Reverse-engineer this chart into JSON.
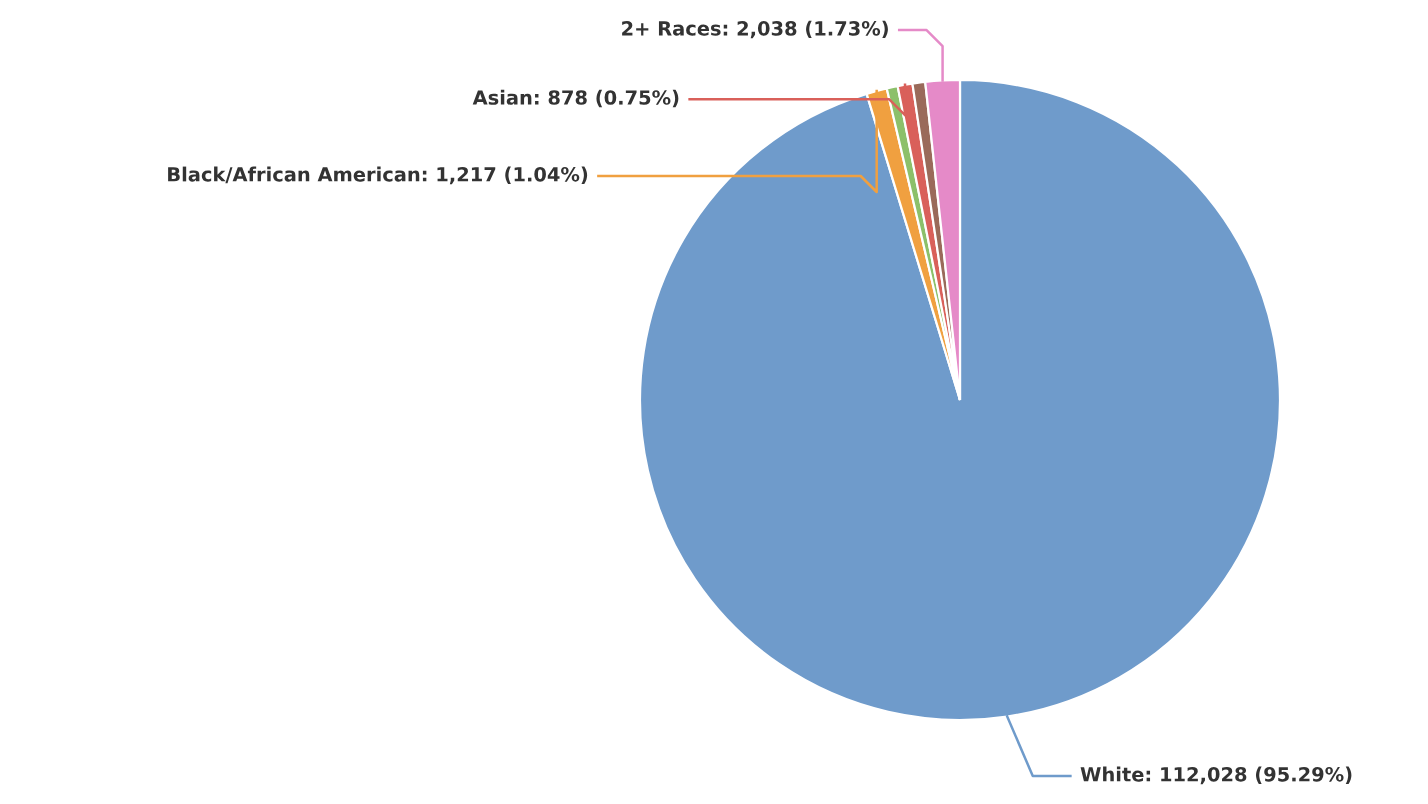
{
  "chart_data": {
    "type": "pie",
    "categories": [
      "White",
      "Black/African American",
      null,
      "Asian",
      null,
      "2+ Races"
    ],
    "values": [
      112028,
      1217,
      650,
      878,
      754,
      2038
    ],
    "value_labels": [
      "112,028 (95.29%)",
      "1,217 (1.04%)",
      null,
      "878 (0.75%)",
      null,
      "2,038 (1.73%)"
    ],
    "colors": [
      "#6f9bcb",
      "#f0a040",
      "#8cc06a",
      "#d9605a",
      "#9a6a5a",
      "#e58ac8"
    ],
    "legend": false
  }
}
